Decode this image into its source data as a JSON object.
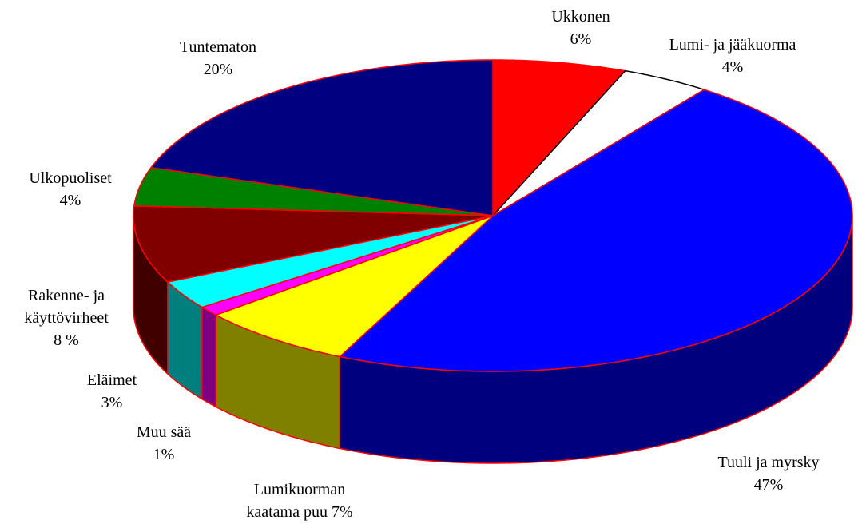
{
  "chart_data": {
    "type": "pie",
    "categories": [
      "Ukkonen",
      "Lumi- ja jääkuorma",
      "Tuuli ja myrsky",
      "Lumikuorman kaatama puu",
      "Muu sää",
      "Eläimet",
      "Rakenne- ja käyttövirheet",
      "Ulkopuoliset",
      "Tuntematon"
    ],
    "values": [
      6,
      4,
      47,
      7,
      1,
      3,
      8,
      4,
      20
    ],
    "value_labels": [
      "6%",
      "4%",
      "47%",
      "7%",
      "1%",
      "3%",
      "8 %",
      "4%",
      "20%"
    ],
    "colors": [
      "#ff0000",
      "#ffffff",
      "#0000ff",
      "#ffff00",
      "#ff00ff",
      "#00ffff",
      "#800000",
      "#008000",
      "#000080"
    ]
  }
}
